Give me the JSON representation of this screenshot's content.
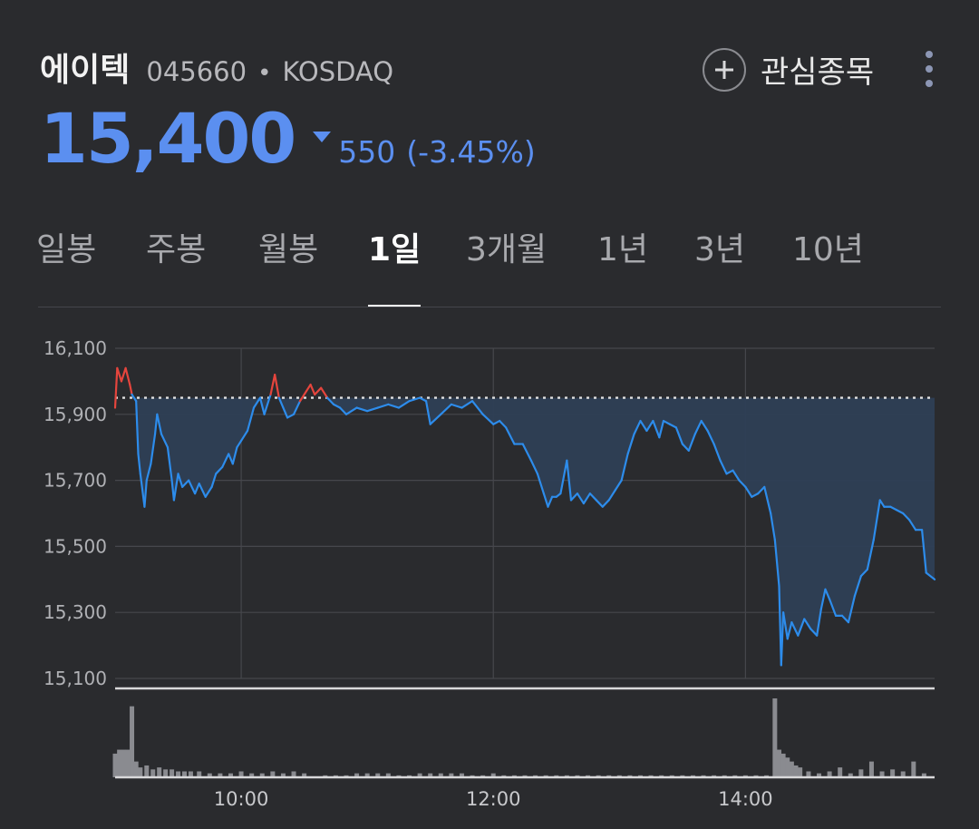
{
  "header": {
    "name": "에이텍",
    "code": "045660",
    "separator": "•",
    "market": "KOSDAQ",
    "watch_label": "관심종목",
    "watch_icon": "plus-circle-icon",
    "more_icon": "more-vertical-icon"
  },
  "quote": {
    "price": "15,400",
    "direction_icon": "down-triangle-icon",
    "change": "550",
    "change_pct": "(-3.45%)",
    "color": "#5b8ff0"
  },
  "tabs": [
    {
      "label": "일봉",
      "active": false
    },
    {
      "label": "주봉",
      "active": false
    },
    {
      "label": "월봉",
      "active": false
    },
    {
      "label": "1일",
      "active": true
    },
    {
      "label": "3개월",
      "active": false
    },
    {
      "label": "1년",
      "active": false
    },
    {
      "label": "3년",
      "active": false
    },
    {
      "label": "10년",
      "active": false
    }
  ],
  "chart_data": {
    "type": "line",
    "y_ticks": [
      "16,100",
      "15,900",
      "15,700",
      "15,500",
      "15,300",
      "15,100"
    ],
    "x_ticks": [
      "10:00",
      "12:00",
      "14:00"
    ],
    "ylim": [
      15100,
      16100
    ],
    "xlim": [
      "09:00",
      "15:30"
    ],
    "reference_price": 15950,
    "grid": true,
    "colors": {
      "up": "#e5453d",
      "down": "#2d8ceb",
      "fill": "#2e3f55",
      "volume": "#8a8b90"
    },
    "series": [
      {
        "values": [
          [
            "09:00",
            15920
          ],
          [
            "09:01",
            16040
          ],
          [
            "09:03",
            16000
          ],
          [
            "09:05",
            16040
          ],
          [
            "09:07",
            15990
          ],
          [
            "09:08",
            15960
          ],
          [
            "09:10",
            15940
          ],
          [
            "09:11",
            15780
          ],
          [
            "09:12",
            15720
          ],
          [
            "09:14",
            15620
          ],
          [
            "09:15",
            15700
          ],
          [
            "09:17",
            15750
          ],
          [
            "09:19",
            15840
          ],
          [
            "09:20",
            15900
          ],
          [
            "09:22",
            15840
          ],
          [
            "09:25",
            15800
          ],
          [
            "09:27",
            15700
          ],
          [
            "09:28",
            15640
          ],
          [
            "09:30",
            15720
          ],
          [
            "09:32",
            15680
          ],
          [
            "09:35",
            15700
          ],
          [
            "09:38",
            15660
          ],
          [
            "09:40",
            15690
          ],
          [
            "09:43",
            15650
          ],
          [
            "09:46",
            15680
          ],
          [
            "09:48",
            15720
          ],
          [
            "09:51",
            15740
          ],
          [
            "09:54",
            15780
          ],
          [
            "09:56",
            15750
          ],
          [
            "09:58",
            15800
          ],
          [
            "10:00",
            15820
          ],
          [
            "10:03",
            15850
          ],
          [
            "10:06",
            15920
          ],
          [
            "10:09",
            15950
          ],
          [
            "10:11",
            15900
          ],
          [
            "10:14",
            15960
          ],
          [
            "10:16",
            16020
          ],
          [
            "10:18",
            15950
          ],
          [
            "10:20",
            15920
          ],
          [
            "10:22",
            15890
          ],
          [
            "10:25",
            15900
          ],
          [
            "10:28",
            15940
          ],
          [
            "10:31",
            15970
          ],
          [
            "10:33",
            15990
          ],
          [
            "10:35",
            15960
          ],
          [
            "10:38",
            15980
          ],
          [
            "10:41",
            15950
          ],
          [
            "10:44",
            15930
          ],
          [
            "10:47",
            15920
          ],
          [
            "10:50",
            15900
          ],
          [
            "10:55",
            15920
          ],
          [
            "11:00",
            15910
          ],
          [
            "11:05",
            15920
          ],
          [
            "11:10",
            15930
          ],
          [
            "11:15",
            15920
          ],
          [
            "11:20",
            15940
          ],
          [
            "11:25",
            15950
          ],
          [
            "11:28",
            15940
          ],
          [
            "11:30",
            15870
          ],
          [
            "11:35",
            15900
          ],
          [
            "11:40",
            15930
          ],
          [
            "11:45",
            15920
          ],
          [
            "11:50",
            15940
          ],
          [
            "11:55",
            15900
          ],
          [
            "12:00",
            15870
          ],
          [
            "12:03",
            15880
          ],
          [
            "12:06",
            15860
          ],
          [
            "12:10",
            15810
          ],
          [
            "12:14",
            15810
          ],
          [
            "12:18",
            15760
          ],
          [
            "12:21",
            15720
          ],
          [
            "12:24",
            15660
          ],
          [
            "12:26",
            15620
          ],
          [
            "12:28",
            15650
          ],
          [
            "12:30",
            15650
          ],
          [
            "12:32",
            15660
          ],
          [
            "12:35",
            15760
          ],
          [
            "12:37",
            15640
          ],
          [
            "12:40",
            15660
          ],
          [
            "12:43",
            15630
          ],
          [
            "12:46",
            15660
          ],
          [
            "12:49",
            15640
          ],
          [
            "12:52",
            15620
          ],
          [
            "12:55",
            15640
          ],
          [
            "12:58",
            15670
          ],
          [
            "13:01",
            15700
          ],
          [
            "13:04",
            15780
          ],
          [
            "13:07",
            15840
          ],
          [
            "13:10",
            15880
          ],
          [
            "13:13",
            15850
          ],
          [
            "13:16",
            15880
          ],
          [
            "13:19",
            15830
          ],
          [
            "13:21",
            15880
          ],
          [
            "13:24",
            15870
          ],
          [
            "13:27",
            15860
          ],
          [
            "13:30",
            15810
          ],
          [
            "13:33",
            15790
          ],
          [
            "13:36",
            15840
          ],
          [
            "13:39",
            15880
          ],
          [
            "13:42",
            15850
          ],
          [
            "13:45",
            15810
          ],
          [
            "13:48",
            15760
          ],
          [
            "13:51",
            15720
          ],
          [
            "13:54",
            15730
          ],
          [
            "13:57",
            15700
          ],
          [
            "14:00",
            15680
          ],
          [
            "14:03",
            15650
          ],
          [
            "14:06",
            15660
          ],
          [
            "14:09",
            15680
          ],
          [
            "14:12",
            15600
          ],
          [
            "14:14",
            15520
          ],
          [
            "14:16",
            15380
          ],
          [
            "14:17",
            15140
          ],
          [
            "14:18",
            15300
          ],
          [
            "14:20",
            15220
          ],
          [
            "14:22",
            15270
          ],
          [
            "14:25",
            15230
          ],
          [
            "14:28",
            15280
          ],
          [
            "14:31",
            15250
          ],
          [
            "14:34",
            15230
          ],
          [
            "14:36",
            15310
          ],
          [
            "14:38",
            15370
          ],
          [
            "14:40",
            15340
          ],
          [
            "14:43",
            15290
          ],
          [
            "14:46",
            15290
          ],
          [
            "14:49",
            15270
          ],
          [
            "14:52",
            15350
          ],
          [
            "14:55",
            15410
          ],
          [
            "14:58",
            15430
          ],
          [
            "15:01",
            15520
          ],
          [
            "15:04",
            15640
          ],
          [
            "15:06",
            15620
          ],
          [
            "15:09",
            15620
          ],
          [
            "15:12",
            15610
          ],
          [
            "15:15",
            15600
          ],
          [
            "15:18",
            15580
          ],
          [
            "15:21",
            15550
          ],
          [
            "15:24",
            15550
          ],
          [
            "15:26",
            15420
          ],
          [
            "15:30",
            15400
          ]
        ]
      }
    ],
    "volume": [
      [
        "09:00",
        12
      ],
      [
        "09:02",
        14
      ],
      [
        "09:04",
        14
      ],
      [
        "09:06",
        14
      ],
      [
        "09:08",
        36
      ],
      [
        "09:10",
        8
      ],
      [
        "09:12",
        5
      ],
      [
        "09:15",
        6
      ],
      [
        "09:18",
        4
      ],
      [
        "09:21",
        5
      ],
      [
        "09:24",
        4
      ],
      [
        "09:27",
        4
      ],
      [
        "09:30",
        3
      ],
      [
        "09:33",
        3
      ],
      [
        "09:36",
        3
      ],
      [
        "09:40",
        3
      ],
      [
        "09:45",
        2
      ],
      [
        "09:50",
        2
      ],
      [
        "09:55",
        2
      ],
      [
        "10:00",
        3
      ],
      [
        "10:05",
        2
      ],
      [
        "10:10",
        2
      ],
      [
        "10:15",
        3
      ],
      [
        "10:20",
        2
      ],
      [
        "10:25",
        3
      ],
      [
        "10:30",
        2
      ],
      [
        "10:40",
        1
      ],
      [
        "10:45",
        1
      ],
      [
        "10:50",
        1
      ],
      [
        "10:55",
        2
      ],
      [
        "11:00",
        2
      ],
      [
        "11:05",
        2
      ],
      [
        "11:10",
        2
      ],
      [
        "11:15",
        1
      ],
      [
        "11:20",
        1
      ],
      [
        "11:25",
        2
      ],
      [
        "11:30",
        2
      ],
      [
        "11:35",
        2
      ],
      [
        "11:40",
        2
      ],
      [
        "11:45",
        2
      ],
      [
        "11:50",
        1
      ],
      [
        "11:55",
        1
      ],
      [
        "12:00",
        2
      ],
      [
        "12:05",
        1
      ],
      [
        "12:10",
        1
      ],
      [
        "12:15",
        1
      ],
      [
        "12:20",
        1
      ],
      [
        "12:25",
        1
      ],
      [
        "12:30",
        1
      ],
      [
        "12:35",
        1
      ],
      [
        "12:40",
        1
      ],
      [
        "12:45",
        1
      ],
      [
        "12:50",
        1
      ],
      [
        "12:55",
        1
      ],
      [
        "13:00",
        1
      ],
      [
        "13:05",
        1
      ],
      [
        "13:10",
        1
      ],
      [
        "13:15",
        1
      ],
      [
        "13:20",
        1
      ],
      [
        "13:25",
        1
      ],
      [
        "13:30",
        1
      ],
      [
        "13:35",
        1
      ],
      [
        "13:40",
        1
      ],
      [
        "13:45",
        1
      ],
      [
        "13:50",
        1
      ],
      [
        "13:55",
        1
      ],
      [
        "14:00",
        1
      ],
      [
        "14:05",
        1
      ],
      [
        "14:10",
        1
      ],
      [
        "14:14",
        40
      ],
      [
        "14:16",
        14
      ],
      [
        "14:18",
        12
      ],
      [
        "14:20",
        10
      ],
      [
        "14:22",
        8
      ],
      [
        "14:24",
        6
      ],
      [
        "14:26",
        5
      ],
      [
        "14:30",
        3
      ],
      [
        "14:35",
        2
      ],
      [
        "14:40",
        3
      ],
      [
        "14:45",
        5
      ],
      [
        "14:50",
        2
      ],
      [
        "14:55",
        4
      ],
      [
        "15:00",
        8
      ],
      [
        "15:05",
        3
      ],
      [
        "15:10",
        4
      ],
      [
        "15:15",
        3
      ],
      [
        "15:20",
        8
      ],
      [
        "15:25",
        2
      ]
    ]
  }
}
